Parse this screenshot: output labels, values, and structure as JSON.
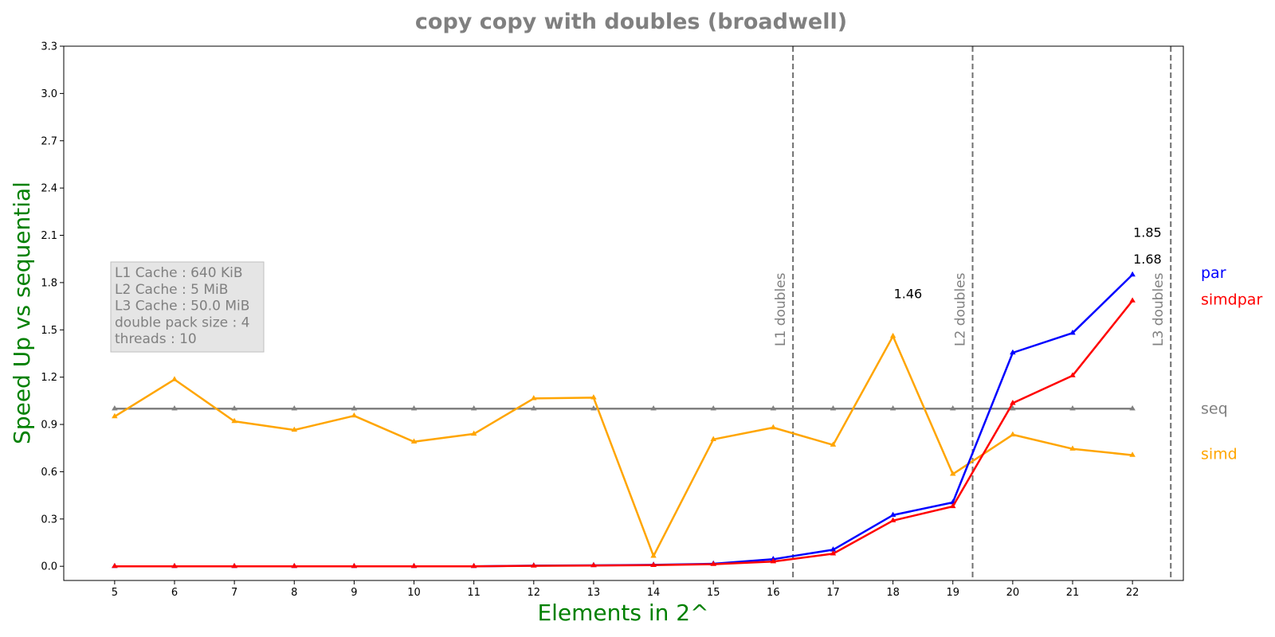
{
  "chart_data": {
    "type": "line",
    "title": "copy copy with doubles  (broadwell)",
    "xlabel": "Elements in 2^",
    "ylabel": "Speed Up vs sequential",
    "x": [
      5,
      6,
      7,
      8,
      9,
      10,
      11,
      12,
      13,
      14,
      15,
      16,
      17,
      18,
      19,
      20,
      21,
      22
    ],
    "x_ticks": [
      "5",
      "6",
      "7",
      "8",
      "9",
      "10",
      "11",
      "12",
      "13",
      "14",
      "15",
      "16",
      "17",
      "18",
      "19",
      "20",
      "21",
      "22"
    ],
    "xlim": [
      4.15,
      22.85
    ],
    "ylim": [
      -0.09,
      3.3
    ],
    "y_ticks": [
      "0.0",
      "0.3",
      "0.6",
      "0.9",
      "1.2",
      "1.5",
      "1.8",
      "2.1",
      "2.4",
      "2.7",
      "3.0",
      "3.3"
    ],
    "grid": false,
    "series": [
      {
        "name": "seq",
        "color": "#808080",
        "values": [
          1.0,
          1.0,
          1.0,
          1.0,
          1.0,
          1.0,
          1.0,
          1.0,
          1.0,
          1.0,
          1.0,
          1.0,
          1.0,
          1.0,
          1.0,
          1.0,
          1.0,
          1.0
        ]
      },
      {
        "name": "simd",
        "color": "#ffa500",
        "values": [
          0.95,
          1.185,
          0.92,
          0.865,
          0.955,
          0.79,
          0.84,
          1.065,
          1.07,
          0.065,
          0.805,
          0.88,
          0.77,
          1.46,
          0.585,
          0.835,
          0.745,
          0.705
        ]
      },
      {
        "name": "par",
        "color": "#0000ff",
        "values": [
          0.0,
          0.0,
          0.0,
          0.0,
          0.0,
          0.0,
          0.0,
          0.004,
          0.006,
          0.009,
          0.016,
          0.045,
          0.105,
          0.325,
          0.405,
          1.355,
          1.48,
          1.85
        ]
      },
      {
        "name": "simdpar",
        "color": "#ff0000",
        "values": [
          0.0,
          0.0,
          0.0,
          0.0,
          0.0,
          0.0,
          0.0,
          0.003,
          0.005,
          0.007,
          0.013,
          0.03,
          0.08,
          0.29,
          0.38,
          1.035,
          1.21,
          1.685
        ]
      }
    ],
    "legend": [
      {
        "label": "par",
        "color": "#0000ff",
        "y": 1.86
      },
      {
        "label": "simdpar",
        "color": "#ff0000",
        "y": 1.69
      },
      {
        "label": "seq",
        "color": "#808080",
        "y": 1.0
      },
      {
        "label": "simd",
        "color": "#ffa500",
        "y": 0.71
      }
    ],
    "vertical_lines": [
      {
        "x": 16.33,
        "label": "L1 doubles"
      },
      {
        "x": 19.33,
        "label": "L2 doubles"
      },
      {
        "x": 22.64,
        "label": "L3 doubles"
      }
    ],
    "annotations": [
      {
        "text": "1.85",
        "x": 22.25,
        "y": 2.09
      },
      {
        "text": "1.68",
        "x": 22.25,
        "y": 1.92
      },
      {
        "text": "1.46",
        "x": 18.25,
        "y": 1.7
      }
    ],
    "info_box": [
      "L1 Cache : 640 KiB",
      "L2 Cache : 5 MiB",
      "L3 Cache : 50.0 MiB",
      "double pack size : 4",
      "threads : 10"
    ]
  }
}
